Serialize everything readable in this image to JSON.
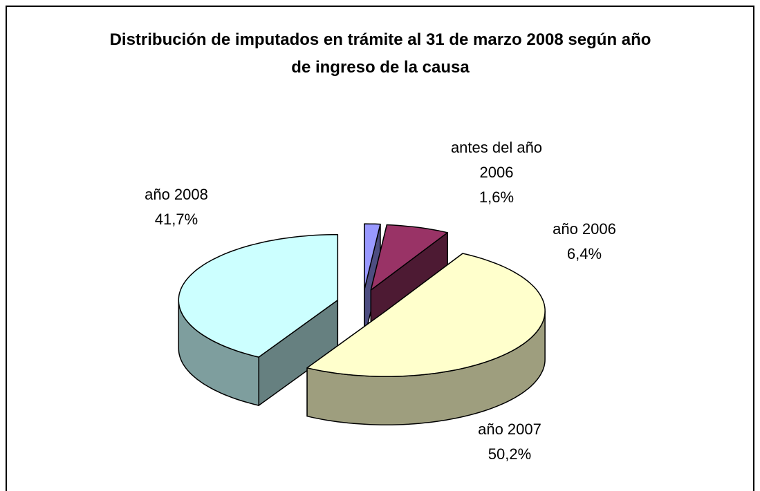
{
  "chart_data": {
    "type": "pie3d",
    "title": "Distribución de imputados en trámite al 31 de marzo 2008 según año de ingreso de la causa",
    "categories": [
      "antes del año 2006",
      "año 2006",
      "año 2007",
      "año 2008"
    ],
    "values": [
      1.6,
      6.4,
      50.2,
      41.7
    ],
    "value_labels": [
      "1,6%",
      "6,4%",
      "50,2%",
      "41,7%"
    ],
    "colors": [
      "#9999ff",
      "#993366",
      "#ffffcc",
      "#ccffff"
    ]
  }
}
